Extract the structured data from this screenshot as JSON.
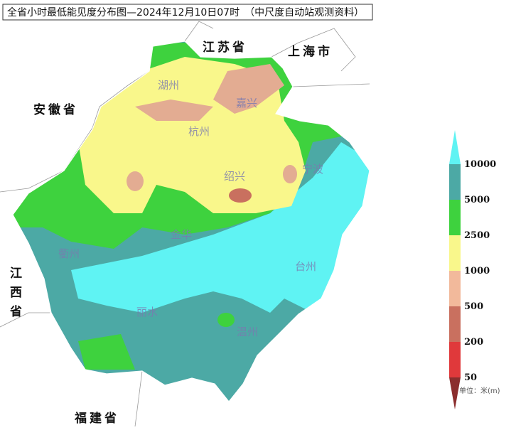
{
  "header": {
    "title": "全省小时最低能见度分布图—2024年12月10日07时　（中尺度自动站观测资料）"
  },
  "neighbors": [
    "江苏省",
    "上海市",
    "安徽省",
    "江西省",
    "福建省"
  ],
  "cities": [
    "湖州",
    "嘉兴",
    "杭州",
    "绍兴",
    "宁波",
    "金华",
    "衢州",
    "台州",
    "丽水",
    "温州"
  ],
  "legend": {
    "ticks": [
      50,
      200,
      500,
      1000,
      2500,
      5000,
      10000
    ],
    "colors": [
      "#8b2e2e",
      "#e0393b",
      "#c9705f",
      "#f2b99b",
      "#f9f78b",
      "#3ed23e",
      "#4ca9a5",
      "#5ff3f3"
    ],
    "unit": "单位：米(m)"
  }
}
